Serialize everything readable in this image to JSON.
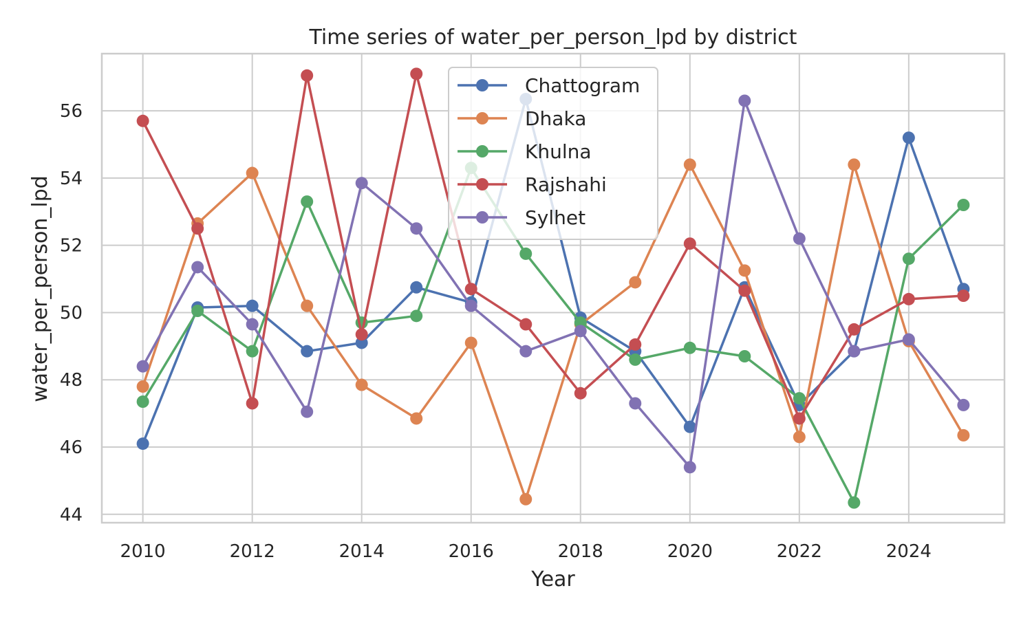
{
  "chart_data": {
    "type": "line",
    "title": "Time series of water_per_person_lpd by district",
    "xlabel": "Year",
    "ylabel": "water_per_person_lpd",
    "xlim": [
      2009.25,
      2025.75
    ],
    "ylim": [
      43.75,
      57.7
    ],
    "x_ticks": [
      2010,
      2012,
      2014,
      2016,
      2018,
      2020,
      2022,
      2024
    ],
    "y_ticks": [
      44,
      46,
      48,
      50,
      52,
      54,
      56
    ],
    "grid": true,
    "legend_position": "upper center",
    "x": [
      2010,
      2011,
      2012,
      2013,
      2014,
      2015,
      2016,
      2017,
      2018,
      2019,
      2020,
      2021,
      2022,
      2023,
      2024,
      2025
    ],
    "series": [
      {
        "name": "Chattogram",
        "color": "#4c72b0",
        "values": [
          46.1,
          50.15,
          50.2,
          48.85,
          49.1,
          50.75,
          50.3,
          56.35,
          49.85,
          48.85,
          46.6,
          50.75,
          47.25,
          48.85,
          55.2,
          50.7
        ]
      },
      {
        "name": "Dhaka",
        "color": "#dd8452",
        "values": [
          47.8,
          52.65,
          54.15,
          50.2,
          47.85,
          46.85,
          49.1,
          44.45,
          49.65,
          50.9,
          54.4,
          51.25,
          46.3,
          54.4,
          49.15,
          46.35
        ]
      },
      {
        "name": "Khulna",
        "color": "#55a868",
        "values": [
          47.35,
          50.05,
          48.85,
          53.3,
          49.7,
          49.9,
          54.3,
          51.75,
          49.7,
          48.6,
          48.95,
          48.7,
          47.45,
          44.35,
          51.6,
          53.2
        ]
      },
      {
        "name": "Rajshahi",
        "color": "#c44e52",
        "values": [
          55.7,
          52.5,
          47.3,
          57.05,
          49.35,
          57.1,
          50.7,
          49.65,
          47.6,
          49.05,
          52.05,
          50.65,
          46.85,
          49.5,
          50.4,
          50.5
        ]
      },
      {
        "name": "Sylhet",
        "color": "#8172b3",
        "values": [
          48.4,
          51.35,
          49.65,
          47.05,
          53.85,
          52.5,
          50.2,
          48.85,
          49.45,
          47.3,
          45.4,
          56.3,
          52.2,
          48.85,
          49.2,
          47.25
        ]
      }
    ]
  }
}
